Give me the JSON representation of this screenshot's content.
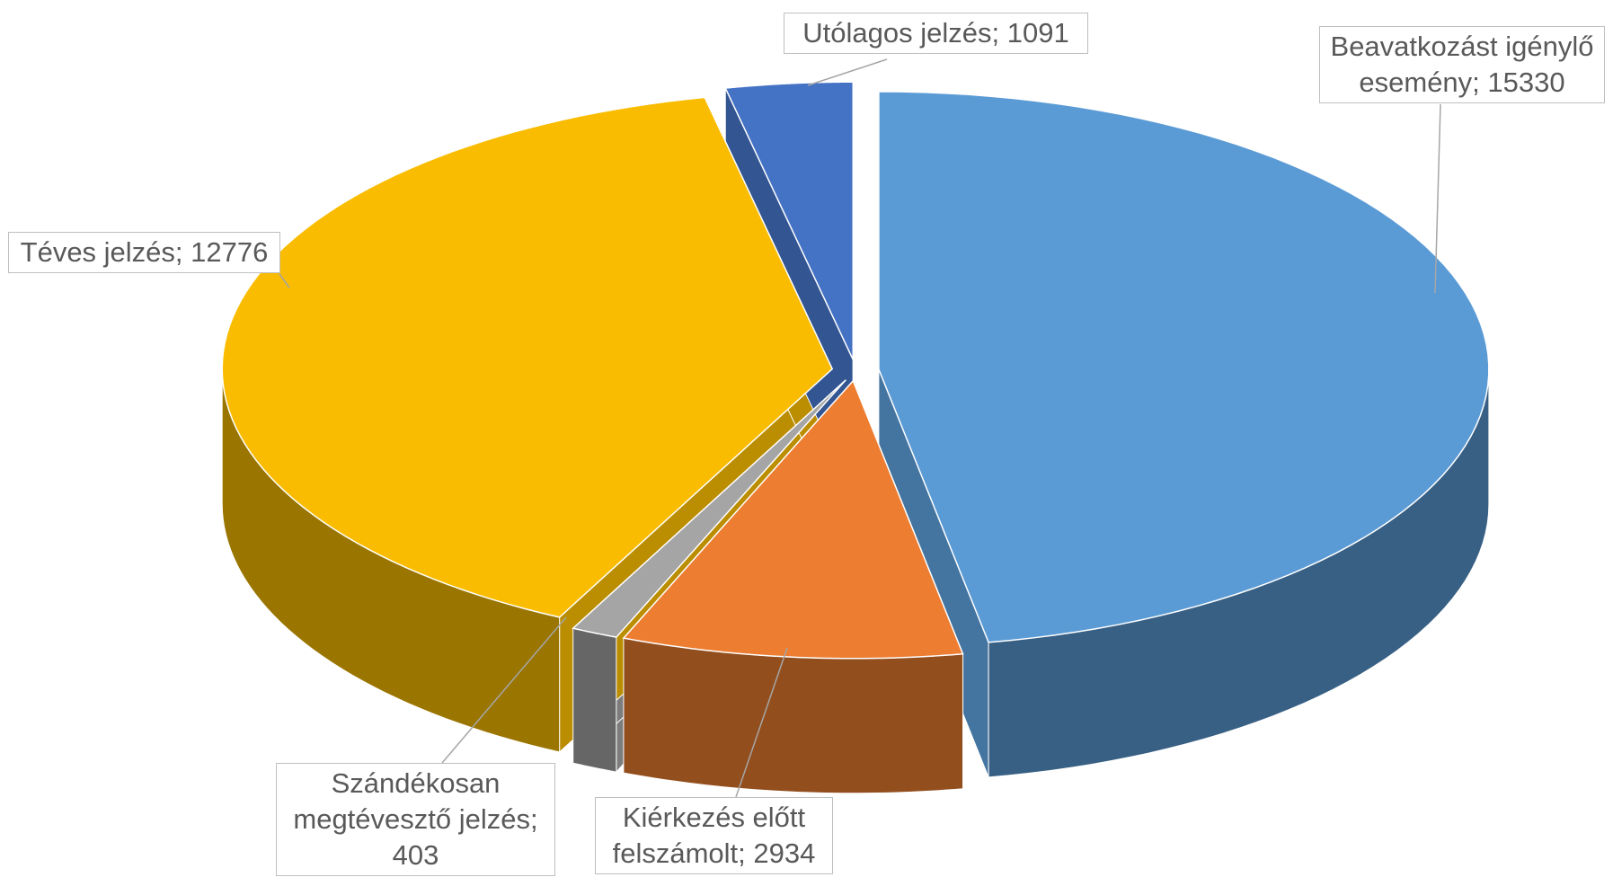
{
  "chart_data": {
    "type": "pie3d",
    "values": [
      15330,
      2934,
      403,
      12776,
      1091
    ],
    "value_labels": [
      "Beavatkozást igénylő esemény; 15330",
      "Kiérkezés előtt felszámolt; 2934",
      "Szándékosan megtévesztő jelzés; 403",
      "Téves jelzés; 12776",
      "Utólagos jelzés; 1091"
    ],
    "colors": [
      "#5b9bd5",
      "#ed7d31",
      "#a5a5a5",
      "#f9bc00",
      "#4472c4"
    ]
  }
}
